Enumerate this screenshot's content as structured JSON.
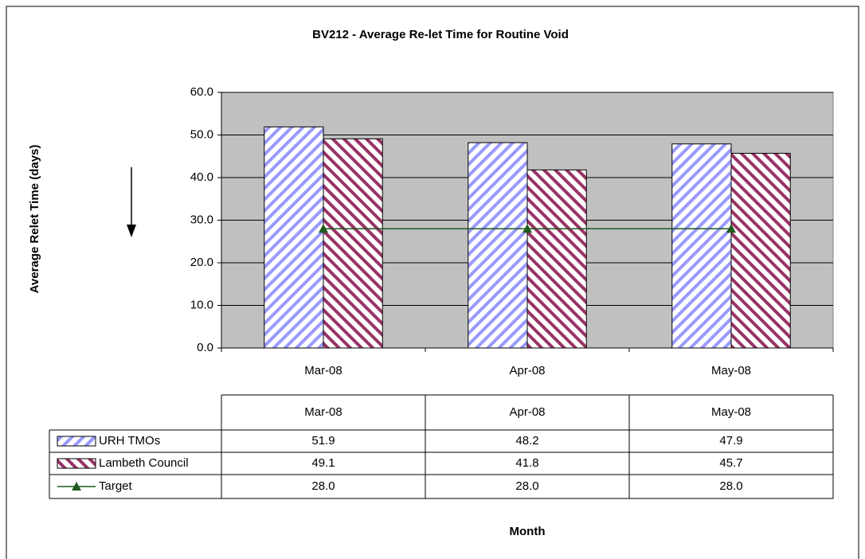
{
  "chart_data": {
    "type": "bar",
    "title": "BV212 - Average Re-let Time for Routine Void",
    "y_label": "Average Relet Time (days)",
    "x_label": "Month",
    "categories": [
      "Mar-08",
      "Apr-08",
      "May-08"
    ],
    "series": [
      {
        "name": "URH TMOs",
        "color": "#9999ff",
        "values": [
          51.9,
          48.2,
          47.9
        ]
      },
      {
        "name": "Lambeth Council",
        "color": "#993366",
        "values": [
          49.1,
          41.8,
          45.7
        ]
      },
      {
        "name": "Target",
        "type": "line",
        "color": "#1f5a1f",
        "values": [
          28,
          28,
          28
        ],
        "value_labels": [
          "28.0",
          "28.0",
          "28.0"
        ]
      }
    ],
    "ylim": [
      0,
      60
    ],
    "yticks": [
      {
        "value": 0,
        "label": "0.0"
      },
      {
        "value": 10,
        "label": "10.0"
      },
      {
        "value": 20,
        "label": "20.0"
      },
      {
        "value": 30,
        "label": "30.0"
      },
      {
        "value": 40,
        "label": "40.0"
      },
      {
        "value": 50,
        "label": "50.0"
      },
      {
        "value": 60,
        "label": "60.0"
      }
    ],
    "grid": true
  }
}
